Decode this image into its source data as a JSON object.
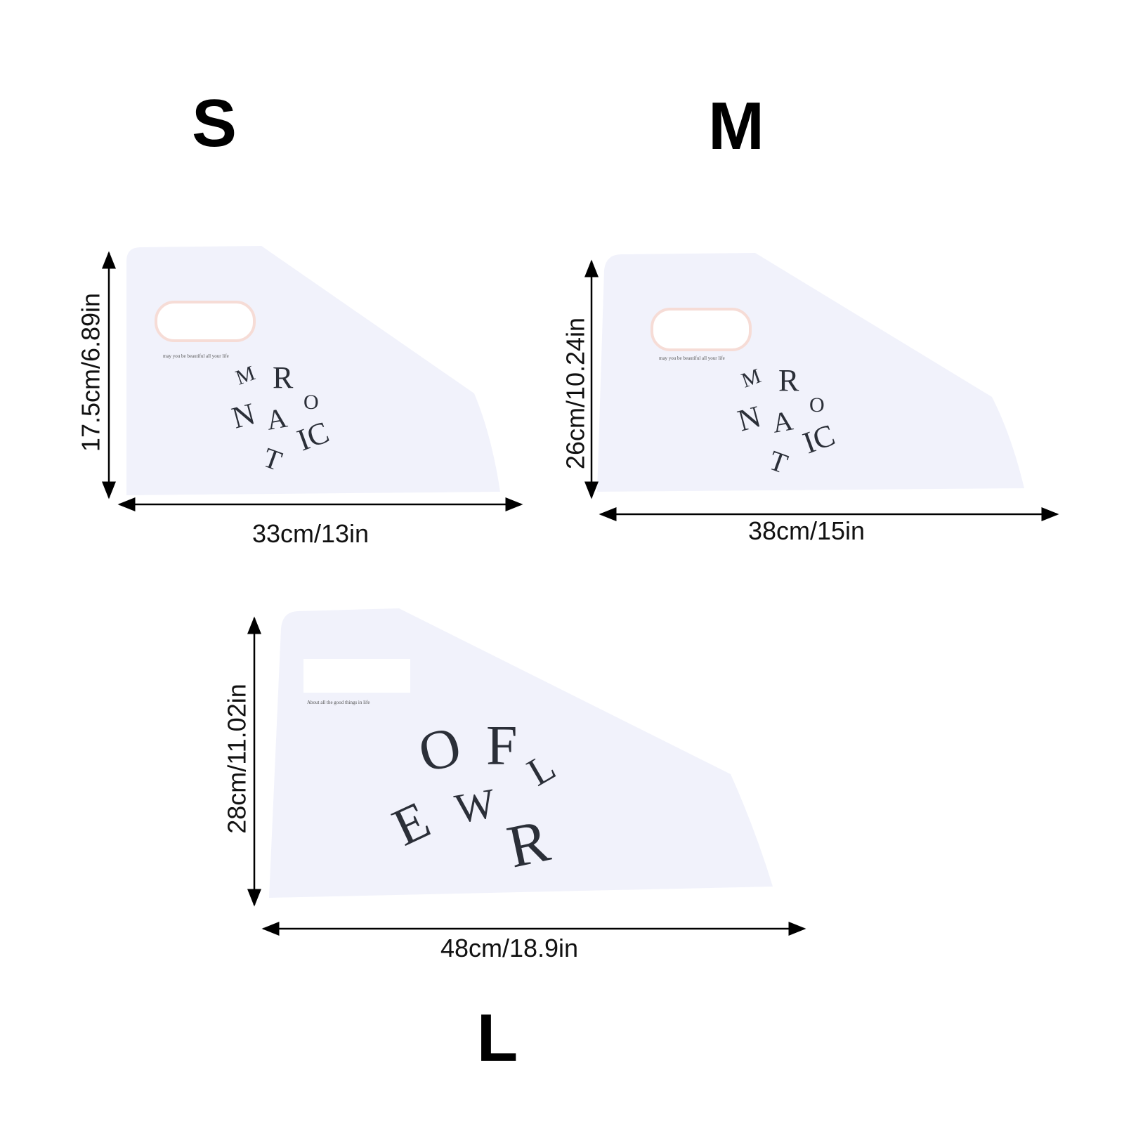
{
  "sizes": [
    {
      "label": "S",
      "width": "33cm/13in",
      "height": "17.5cm/6.89in",
      "tagline": "may you be beautiful all your life",
      "logo": "ROMANTIC"
    },
    {
      "label": "M",
      "width": "38cm/15in",
      "height": "26cm/10.24in",
      "tagline": "may you be beautiful all your life",
      "logo": "ROMANTIC"
    },
    {
      "label": "L",
      "width": "48cm/18.9in",
      "height": "28cm/11.02in",
      "tagline": "About all the good things in life",
      "logo": "FLOWER"
    }
  ],
  "colors": {
    "bag": "#f1f2fb",
    "ink": "#2b2f38",
    "arrow": "#000000"
  }
}
